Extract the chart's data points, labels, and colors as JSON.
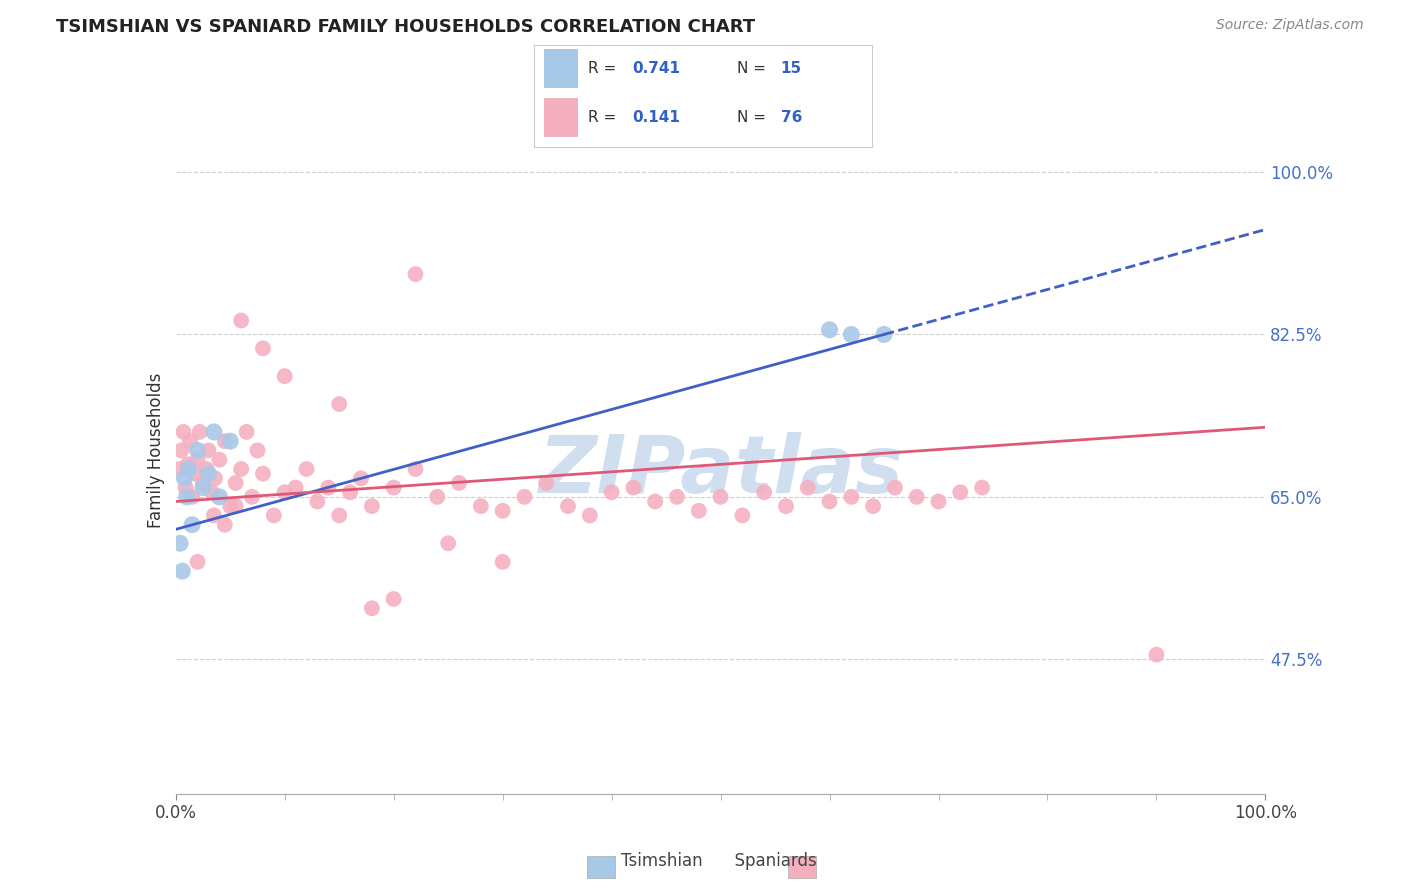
{
  "title": "TSIMSHIAN VS SPANIARD FAMILY HOUSEHOLDS CORRELATION CHART",
  "source_text": "Source: ZipAtlas.com",
  "ylabel": "Family Households",
  "xlim": [
    0.0,
    100.0
  ],
  "ylim": [
    33.0,
    107.0
  ],
  "xtick_labels": [
    "0.0%",
    "100.0%"
  ],
  "ytick_labels": [
    "47.5%",
    "65.0%",
    "82.5%",
    "100.0%"
  ],
  "ytick_values": [
    47.5,
    65.0,
    82.5,
    100.0
  ],
  "grid_color": "#bbbbbb",
  "background_color": "#ffffff",
  "watermark_text": "ZIPatlas",
  "watermark_color": "#d0dff0",
  "tsimshian_color": "#a8c8e8",
  "spaniard_color": "#f5b0c0",
  "tsimshian_line_color": "#4060c8",
  "spaniard_line_color": "#e05878",
  "legend_r_tsimshian": "0.741",
  "legend_n_tsimshian": "15",
  "legend_r_spaniard": "0.141",
  "legend_n_spaniard": "76",
  "tsimshian_x": [
    0.4,
    0.6,
    0.8,
    1.0,
    1.2,
    1.5,
    2.0,
    2.5,
    3.0,
    3.5,
    4.0,
    5.0,
    60.0,
    62.0,
    65.0
  ],
  "tsimshian_y": [
    60.0,
    57.0,
    67.0,
    65.0,
    68.0,
    62.0,
    70.0,
    66.0,
    67.5,
    72.0,
    65.0,
    71.0,
    83.0,
    82.5,
    82.5
  ],
  "spaniard_x": [
    0.3,
    0.5,
    0.7,
    0.9,
    1.1,
    1.3,
    1.5,
    1.8,
    2.0,
    2.2,
    2.5,
    2.8,
    3.0,
    3.3,
    3.6,
    4.0,
    4.5,
    5.0,
    5.5,
    6.0,
    7.0,
    8.0,
    9.0,
    10.0,
    11.0,
    12.0,
    13.0,
    14.0,
    15.0,
    16.0,
    17.0,
    18.0,
    20.0,
    22.0,
    24.0,
    26.0,
    28.0,
    30.0,
    32.0,
    34.0,
    36.0,
    38.0,
    40.0,
    42.0,
    44.0,
    46.0,
    48.0,
    50.0,
    52.0,
    54.0,
    56.0,
    58.0,
    60.0,
    62.0,
    64.0,
    66.0,
    68.0,
    70.0,
    72.0,
    74.0,
    90.0,
    22.0,
    10.0,
    15.0,
    8.0,
    6.0,
    30.0,
    25.0,
    20.0,
    18.0,
    3.5,
    4.5,
    5.5,
    2.0,
    6.5,
    7.5
  ],
  "spaniard_y": [
    68.0,
    70.0,
    72.0,
    66.0,
    68.5,
    71.0,
    65.0,
    67.5,
    69.0,
    72.0,
    66.5,
    68.0,
    70.0,
    65.5,
    67.0,
    69.0,
    71.0,
    64.0,
    66.5,
    68.0,
    65.0,
    67.5,
    63.0,
    65.5,
    66.0,
    68.0,
    64.5,
    66.0,
    63.0,
    65.5,
    67.0,
    64.0,
    66.0,
    68.0,
    65.0,
    66.5,
    64.0,
    63.5,
    65.0,
    66.5,
    64.0,
    63.0,
    65.5,
    66.0,
    64.5,
    65.0,
    63.5,
    65.0,
    63.0,
    65.5,
    64.0,
    66.0,
    64.5,
    65.0,
    64.0,
    66.0,
    65.0,
    64.5,
    65.5,
    66.0,
    48.0,
    89.0,
    78.0,
    75.0,
    81.0,
    84.0,
    58.0,
    60.0,
    54.0,
    53.0,
    63.0,
    62.0,
    64.0,
    58.0,
    72.0,
    70.0
  ],
  "ts_line_x0": 0.0,
  "ts_line_y0": 61.5,
  "ts_line_x1": 65.0,
  "ts_line_y1": 82.5,
  "ts_dash_x0": 65.0,
  "ts_dash_y0": 82.5,
  "ts_dash_x1": 100.0,
  "ts_dash_y1": 93.8,
  "sp_line_x0": 0.0,
  "sp_line_y0": 64.5,
  "sp_line_x1": 100.0,
  "sp_line_y1": 72.5
}
